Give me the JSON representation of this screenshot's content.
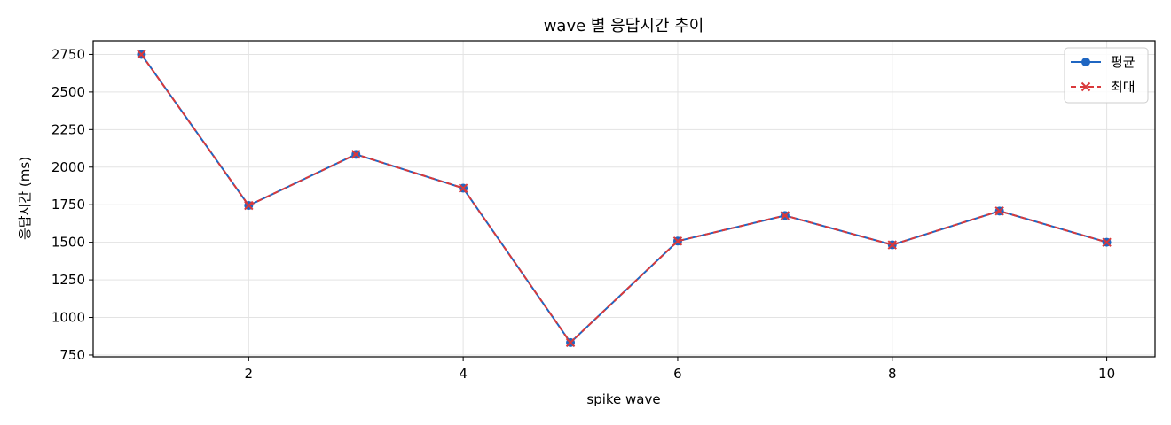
{
  "chart_data": {
    "type": "line",
    "title": "wave 별 응답시간 추이",
    "xlabel": "spike wave",
    "ylabel": "응답시간 (ms)",
    "x": [
      1,
      2,
      3,
      4,
      5,
      6,
      7,
      8,
      9,
      10
    ],
    "xlim": [
      0.55,
      10.45
    ],
    "ylim": [
      738,
      2841
    ],
    "x_ticks": [
      2,
      4,
      6,
      8,
      10
    ],
    "y_ticks": [
      750,
      1000,
      1250,
      1500,
      1750,
      2000,
      2250,
      2500,
      2750
    ],
    "grid": true,
    "legend_position": "top-right",
    "series": [
      {
        "name": "평균",
        "values": [
          2750,
          1745,
          2085,
          1860,
          833,
          1508,
          1678,
          1483,
          1708,
          1500
        ],
        "color": "#1f66c2",
        "line_style": "solid",
        "marker": "circle"
      },
      {
        "name": "최대",
        "values": [
          2750,
          1745,
          2085,
          1860,
          833,
          1508,
          1678,
          1483,
          1708,
          1500
        ],
        "color": "#d9393b",
        "line_style": "dashed",
        "marker": "x"
      }
    ]
  }
}
